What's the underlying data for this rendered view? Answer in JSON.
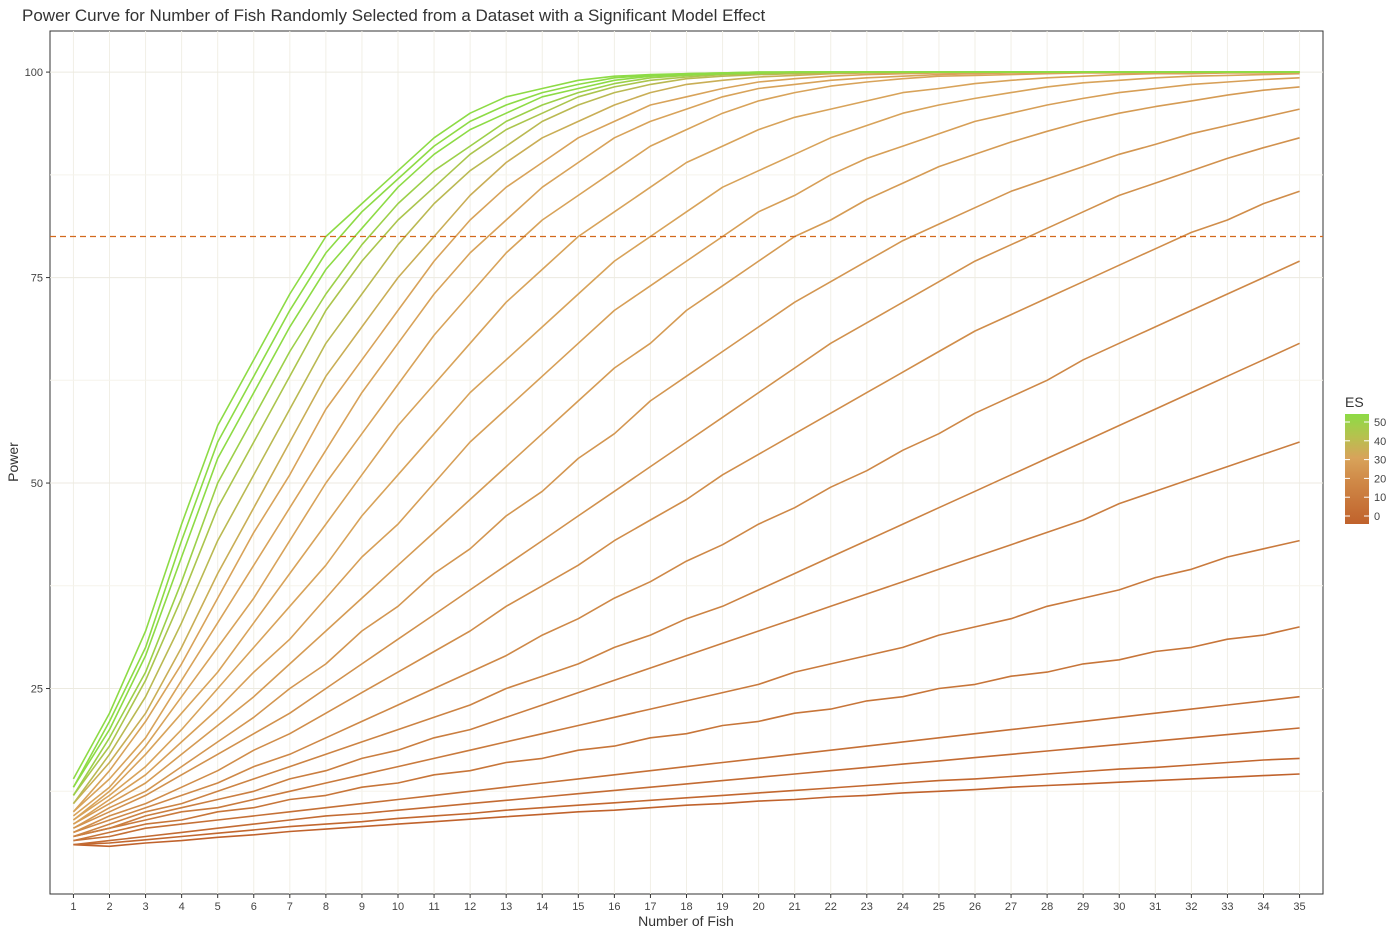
{
  "chart_data": {
    "type": "line",
    "title": "Power Curve for Number of Fish Randomly Selected from a Dataset with a Significant Model Effect",
    "xlabel": "Number of Fish",
    "ylabel": "Power",
    "x": [
      1,
      2,
      3,
      4,
      5,
      6,
      7,
      8,
      9,
      10,
      11,
      12,
      13,
      14,
      15,
      16,
      17,
      18,
      19,
      20,
      21,
      22,
      23,
      24,
      25,
      26,
      27,
      28,
      29,
      30,
      31,
      32,
      33,
      34,
      35
    ],
    "x_ticks": [
      "1",
      "2",
      "3",
      "4",
      "5",
      "6",
      "7",
      "8",
      "9",
      "10",
      "11",
      "12",
      "13",
      "14",
      "15",
      "16",
      "17",
      "18",
      "19",
      "20",
      "21",
      "22",
      "23",
      "24",
      "25",
      "26",
      "27",
      "28",
      "29",
      "30",
      "31",
      "32",
      "33",
      "34",
      "35"
    ],
    "y_ticks": [
      "25",
      "50",
      "75",
      "100"
    ],
    "xlim": [
      0.35,
      35.65
    ],
    "ylim": [
      0,
      105
    ],
    "reference_line": {
      "y": 80,
      "style": "dashed",
      "color": "#d2691e"
    },
    "color_scale": {
      "name": "ES",
      "breaks": [
        "50",
        "40",
        "30",
        "20",
        "10",
        "0"
      ],
      "low_color": "#c0622c",
      "mid_color": "#d8a35a",
      "high_color": "#8ddb45",
      "range": [
        0,
        50
      ]
    },
    "grid": true,
    "legend_position": "right",
    "series": [
      {
        "es": 50,
        "values": [
          14,
          22,
          32,
          45,
          57,
          65,
          73,
          80,
          84,
          88,
          92,
          95,
          97,
          98,
          99,
          99.5,
          99.7,
          99.8,
          99.9,
          100,
          100,
          100,
          100,
          100,
          100,
          100,
          100,
          100,
          100,
          100,
          100,
          100,
          100,
          100,
          100
        ]
      },
      {
        "es": 48,
        "values": [
          13,
          21,
          30,
          43,
          55,
          63,
          71,
          78,
          83,
          87,
          91,
          94,
          96,
          97.5,
          98.5,
          99.3,
          99.6,
          99.8,
          99.9,
          100,
          100,
          100,
          100,
          100,
          100,
          100,
          100,
          100,
          100,
          100,
          100,
          100,
          100,
          100,
          100
        ]
      },
      {
        "es": 46,
        "values": [
          13,
          20,
          29,
          41,
          53,
          61,
          69,
          76,
          81,
          86,
          90,
          93,
          95,
          97,
          98,
          99,
          99.5,
          99.7,
          99.8,
          99.9,
          100,
          100,
          100,
          100,
          100,
          100,
          100,
          100,
          100,
          100,
          100,
          100,
          100,
          100,
          100
        ]
      },
      {
        "es": 44,
        "values": [
          12,
          19,
          27,
          38,
          50,
          58,
          66,
          73,
          79,
          84,
          88,
          91,
          94,
          96,
          97.5,
          98.6,
          99.3,
          99.6,
          99.8,
          99.9,
          100,
          100,
          100,
          100,
          100,
          100,
          100,
          100,
          100,
          100,
          100,
          100,
          100,
          100,
          100
        ]
      },
      {
        "es": 42,
        "values": [
          12,
          18,
          26,
          36,
          47,
          55,
          63,
          71,
          77,
          82,
          86,
          90,
          93,
          95,
          97,
          98.2,
          99,
          99.4,
          99.7,
          99.8,
          99.9,
          100,
          100,
          100,
          100,
          100,
          100,
          100,
          100,
          100,
          100,
          100,
          100,
          100,
          100
        ]
      },
      {
        "es": 40,
        "values": [
          11,
          17,
          24,
          33,
          43,
          51,
          59,
          67,
          73,
          79,
          84,
          88,
          91,
          94,
          96,
          97.5,
          98.5,
          99.2,
          99.5,
          99.7,
          99.8,
          99.9,
          100,
          100,
          100,
          100,
          100,
          100,
          100,
          100,
          100,
          100,
          100,
          100,
          100
        ]
      },
      {
        "es": 38,
        "values": [
          11,
          16,
          22,
          30,
          39,
          47,
          55,
          63,
          69,
          75,
          80,
          85,
          89,
          92,
          94,
          96,
          97.5,
          98.5,
          99,
          99.4,
          99.6,
          99.8,
          99.9,
          99.9,
          100,
          100,
          100,
          100,
          100,
          100,
          100,
          100,
          100,
          100,
          100
        ]
      },
      {
        "es": 36,
        "values": [
          10,
          15,
          21,
          28,
          36,
          44,
          51,
          59,
          65,
          71,
          77,
          82,
          86,
          89,
          92,
          94,
          96,
          97,
          98,
          98.8,
          99.2,
          99.5,
          99.7,
          99.8,
          99.9,
          99.9,
          100,
          100,
          100,
          100,
          100,
          100,
          100,
          100,
          100
        ]
      },
      {
        "es": 34,
        "values": [
          10,
          14,
          19,
          26,
          33,
          40,
          47,
          54,
          61,
          67,
          73,
          78,
          82,
          86,
          89,
          92,
          94,
          95.5,
          97,
          98,
          98.5,
          99,
          99.3,
          99.5,
          99.7,
          99.8,
          99.9,
          99.9,
          100,
          100,
          100,
          100,
          100,
          100,
          100
        ]
      },
      {
        "es": 32,
        "values": [
          9.5,
          13,
          18,
          24,
          30,
          36,
          43,
          50,
          56,
          62,
          68,
          73,
          78,
          82,
          85,
          88,
          91,
          93,
          95,
          96.5,
          97.5,
          98.3,
          98.8,
          99.2,
          99.5,
          99.6,
          99.7,
          99.8,
          99.9,
          99.9,
          99.9,
          100,
          100,
          100,
          100
        ]
      },
      {
        "es": 30,
        "values": [
          9,
          12.5,
          17,
          22,
          27,
          33,
          39,
          45,
          51,
          57,
          62,
          67,
          72,
          76,
          80,
          83,
          86,
          89,
          91,
          93,
          94.5,
          95.5,
          96.5,
          97.5,
          98,
          98.6,
          99,
          99.3,
          99.5,
          99.7,
          99.8,
          99.8,
          99.9,
          99.9,
          99.9
        ]
      },
      {
        "es": 28,
        "values": [
          9,
          12,
          15.5,
          20,
          25,
          30,
          35,
          40,
          46,
          51,
          56,
          61,
          65,
          69,
          73,
          77,
          80,
          83,
          86,
          88,
          90,
          92,
          93.5,
          95,
          96,
          96.8,
          97.5,
          98.2,
          98.7,
          99,
          99.3,
          99.5,
          99.6,
          99.7,
          99.8
        ]
      },
      {
        "es": 26,
        "values": [
          8.5,
          11.5,
          14.5,
          18.5,
          22.5,
          27,
          31,
          36,
          41,
          45,
          50,
          55,
          59,
          63,
          67,
          71,
          74,
          77,
          80,
          83,
          85,
          87.5,
          89.5,
          91,
          92.5,
          94,
          95,
          96,
          96.8,
          97.5,
          98,
          98.5,
          98.8,
          99.1,
          99.3
        ]
      },
      {
        "es": 24,
        "values": [
          8.5,
          11,
          13.5,
          17,
          20.5,
          24,
          28,
          32,
          36,
          40,
          44,
          48,
          52,
          56,
          60,
          64,
          67,
          71,
          74,
          77,
          80,
          82,
          84.5,
          86.5,
          88.5,
          90,
          91.5,
          92.8,
          94,
          95,
          95.8,
          96.5,
          97.2,
          97.8,
          98.2
        ]
      },
      {
        "es": 22,
        "values": [
          8,
          10.5,
          12.5,
          15.5,
          18.5,
          21.5,
          25,
          28,
          32,
          35,
          39,
          42,
          46,
          49,
          53,
          56,
          60,
          63,
          66,
          69,
          72,
          74.5,
          77,
          79.5,
          81.5,
          83.5,
          85.5,
          87,
          88.5,
          90,
          91.2,
          92.5,
          93.5,
          94.5,
          95.5
        ]
      },
      {
        "es": 20,
        "values": [
          8,
          10,
          12,
          14.5,
          17,
          19.5,
          22,
          25,
          28,
          31,
          34,
          37,
          40,
          43,
          46,
          49,
          52,
          55,
          58,
          61,
          64,
          67,
          69.5,
          72,
          74.5,
          77,
          79,
          81,
          83,
          85,
          86.5,
          88,
          89.5,
          90.8,
          92
        ]
      },
      {
        "es": 18,
        "values": [
          7.5,
          9.5,
          11,
          13,
          15,
          17.5,
          19.5,
          22,
          24.5,
          27,
          29.5,
          32,
          35,
          37.5,
          40,
          43,
          45.5,
          48,
          51,
          53.5,
          56,
          58.5,
          61,
          63.5,
          66,
          68.5,
          70.5,
          72.5,
          74.5,
          76.5,
          78.5,
          80.5,
          82,
          84,
          85.5
        ]
      },
      {
        "es": 16,
        "values": [
          7.5,
          9,
          10.5,
          12,
          13.5,
          15.5,
          17,
          19,
          21,
          23,
          25,
          27,
          29,
          31.5,
          33.5,
          36,
          38,
          40.5,
          42.5,
          45,
          47,
          49.5,
          51.5,
          54,
          56,
          58.5,
          60.5,
          62.5,
          65,
          67,
          69,
          71,
          73,
          75,
          77
        ]
      },
      {
        "es": 14,
        "values": [
          7,
          8.5,
          10,
          11,
          12.5,
          14,
          15.5,
          17,
          18.5,
          20,
          21.5,
          23,
          25,
          26.5,
          28,
          30,
          31.5,
          33.5,
          35,
          37,
          39,
          41,
          43,
          45,
          47,
          49,
          51,
          53,
          55,
          57,
          59,
          61,
          63,
          65,
          67
        ]
      },
      {
        "es": 12,
        "values": [
          7,
          8,
          9.5,
          10.5,
          11.5,
          12.5,
          14,
          15,
          16.5,
          17.5,
          19,
          20,
          21.5,
          23,
          24.5,
          26,
          27.5,
          29,
          30.5,
          32,
          33.5,
          35,
          36.5,
          38,
          39.5,
          41,
          42.5,
          44,
          45.5,
          47.5,
          49,
          50.5,
          52,
          53.5,
          55
        ]
      },
      {
        "es": 10,
        "values": [
          7,
          8,
          9,
          10,
          10.5,
          11.5,
          12.5,
          13.5,
          14.5,
          15.5,
          16.5,
          17.5,
          18.5,
          19.5,
          20.5,
          21.5,
          22.5,
          23.5,
          24.5,
          25.5,
          27,
          28,
          29,
          30,
          31.5,
          32.5,
          33.5,
          35,
          36,
          37,
          38.5,
          39.5,
          41,
          42,
          43
        ]
      },
      {
        "es": 8,
        "values": [
          6.5,
          7.5,
          8.5,
          9,
          10,
          10.5,
          11.5,
          12,
          13,
          13.5,
          14.5,
          15,
          16,
          16.5,
          17.5,
          18,
          19,
          19.5,
          20.5,
          21,
          22,
          22.5,
          23.5,
          24,
          25,
          25.5,
          26.5,
          27,
          28,
          28.5,
          29.5,
          30,
          31,
          31.5,
          32.5
        ]
      },
      {
        "es": 6,
        "values": [
          6.5,
          7,
          8,
          8.5,
          9,
          9.5,
          10,
          10.5,
          11,
          11.5,
          12,
          12.5,
          13,
          13.5,
          14,
          14.5,
          15,
          15.5,
          16,
          16.5,
          17,
          17.5,
          18,
          18.5,
          19,
          19.5,
          20,
          20.5,
          21,
          21.5,
          22,
          22.5,
          23,
          23.5,
          24
        ]
      },
      {
        "es": 4,
        "values": [
          6,
          6.5,
          7,
          7.5,
          8,
          8.5,
          9,
          9.5,
          9.8,
          10.2,
          10.6,
          11,
          11.4,
          11.8,
          12.2,
          12.6,
          13,
          13.4,
          13.8,
          14.2,
          14.6,
          15,
          15.4,
          15.8,
          16.2,
          16.6,
          17,
          17.4,
          17.8,
          18.2,
          18.6,
          19,
          19.4,
          19.8,
          20.2
        ]
      },
      {
        "es": 2,
        "values": [
          6,
          6.2,
          6.6,
          7,
          7.4,
          7.8,
          8.2,
          8.5,
          8.8,
          9.2,
          9.5,
          9.8,
          10.2,
          10.5,
          10.8,
          11.1,
          11.4,
          11.7,
          12,
          12.3,
          12.6,
          12.9,
          13.2,
          13.5,
          13.8,
          14,
          14.3,
          14.6,
          14.9,
          15.2,
          15.4,
          15.7,
          16,
          16.3,
          16.5
        ]
      },
      {
        "es": 0,
        "values": [
          6,
          5.8,
          6.2,
          6.5,
          6.9,
          7.2,
          7.6,
          7.9,
          8.2,
          8.5,
          8.8,
          9.1,
          9.4,
          9.7,
          10,
          10.2,
          10.5,
          10.8,
          11,
          11.3,
          11.5,
          11.8,
          12,
          12.3,
          12.5,
          12.7,
          13,
          13.2,
          13.4,
          13.6,
          13.8,
          14,
          14.2,
          14.4,
          14.6
        ]
      }
    ]
  }
}
